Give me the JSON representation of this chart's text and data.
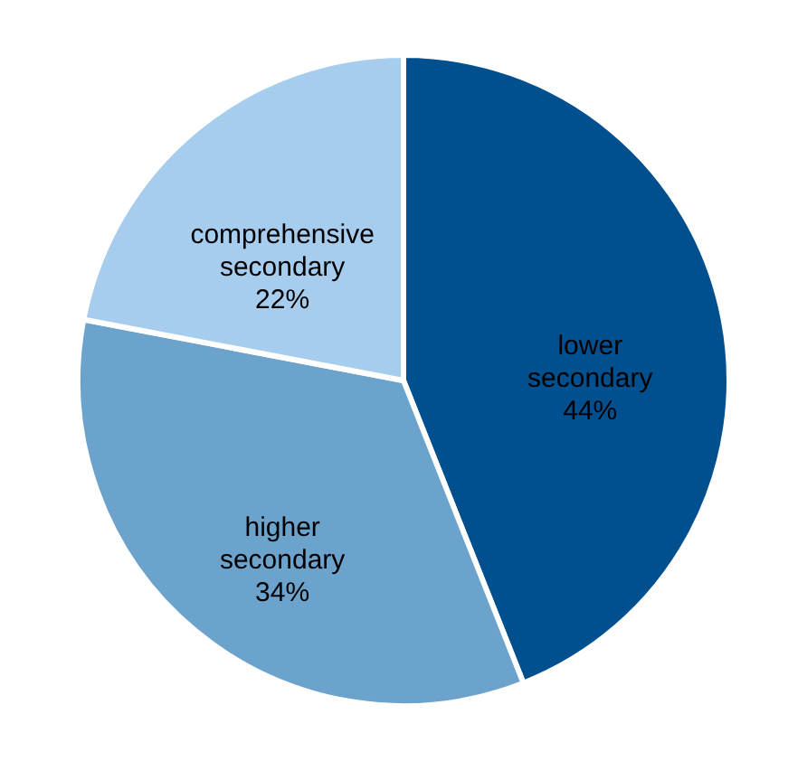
{
  "chart_data": {
    "type": "pie",
    "categories": [
      "lower secondary",
      "higher secondary",
      "comprehensive secondary"
    ],
    "values": [
      44,
      34,
      22
    ],
    "colors": [
      "#00508f",
      "#6ba3cc",
      "#a6cdee"
    ],
    "value_labels": [
      "44%",
      "34%",
      "22%"
    ]
  }
}
